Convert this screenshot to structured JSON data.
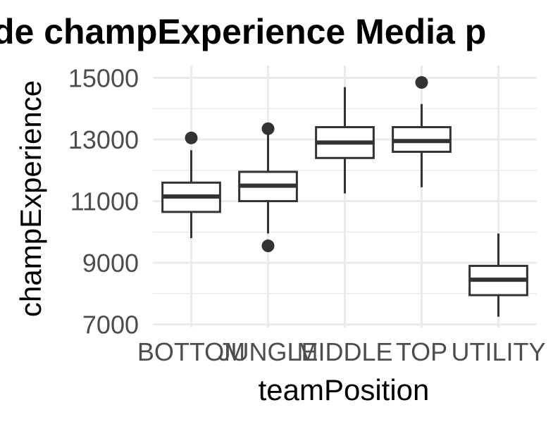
{
  "chart_data": {
    "type": "boxplot",
    "title": "de champExperience Media p",
    "xlabel": "teamPosition",
    "ylabel": "champExperience",
    "ylim": [
      6900,
      15400
    ],
    "y_ticks": [
      7000,
      9000,
      11000,
      13000,
      15000
    ],
    "y_tick_labels": [
      "7000",
      "9000",
      "11000",
      "13000",
      "15000"
    ],
    "grid": true,
    "legend": "none",
    "colors": {
      "box_line": "#333333",
      "box_fill": "#ffffff",
      "grid": "#ebebeb",
      "tick_text": "#4d4d4d"
    },
    "categories": [
      "BOTTOM",
      "JUNGLE",
      "MIDDLE",
      "TOP",
      "UTILITY"
    ],
    "boxes": [
      {
        "category": "BOTTOM",
        "whisker_low": 9800,
        "q1": 10650,
        "median": 11150,
        "q3": 11600,
        "whisker_high": 12650,
        "outliers": [
          13050
        ]
      },
      {
        "category": "JUNGLE",
        "whisker_low": 9950,
        "q1": 11000,
        "median": 11500,
        "q3": 11950,
        "whisker_high": 13200,
        "outliers": [
          13350,
          9550
        ]
      },
      {
        "category": "MIDDLE",
        "whisker_low": 11250,
        "q1": 12400,
        "median": 12900,
        "q3": 13400,
        "whisker_high": 14700,
        "outliers": []
      },
      {
        "category": "TOP",
        "whisker_low": 11450,
        "q1": 12600,
        "median": 12950,
        "q3": 13400,
        "whisker_high": 14150,
        "outliers": [
          14850
        ]
      },
      {
        "category": "UTILITY",
        "whisker_low": 7250,
        "q1": 7950,
        "median": 8450,
        "q3": 8900,
        "whisker_high": 9950,
        "outliers": []
      }
    ]
  }
}
